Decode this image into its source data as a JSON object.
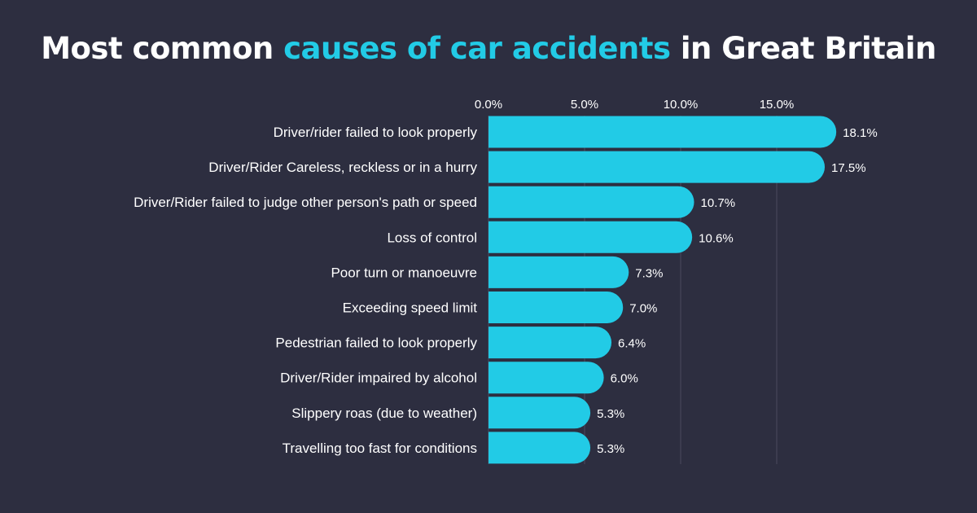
{
  "title": {
    "part1": "Most common ",
    "accent": "causes of car accidents",
    "part2": " in Great Britain"
  },
  "colors": {
    "background": "#2d2e40",
    "bar": "#22cbe6",
    "accent": "#22cbe6",
    "text": "#ffffff",
    "grid": "#4a4b5e"
  },
  "chart_data": {
    "type": "bar",
    "orientation": "horizontal",
    "title": "Most common causes of car accidents in Great Britain",
    "categories": [
      "Driver/rider failed to look properly",
      "Driver/Rider Careless, reckless or in a hurry",
      "Driver/Rider failed to judge other person's path or speed",
      "Loss of control",
      "Poor turn or manoeuvre",
      "Exceeding speed limit",
      "Pedestrian failed to look properly",
      "Driver/Rider impaired by alcohol",
      "Slippery roas (due to weather)",
      "Travelling too fast for conditions"
    ],
    "values": [
      18.1,
      17.5,
      10.7,
      10.6,
      7.3,
      7.0,
      6.4,
      6.0,
      5.3,
      5.3
    ],
    "value_labels": [
      "18.1%",
      "17.5%",
      "10.7%",
      "10.6%",
      "7.3%",
      "7.0%",
      "6.4%",
      "6.0%",
      "5.3%",
      "5.3%"
    ],
    "xticks": [
      0,
      5,
      10,
      15
    ],
    "xtick_labels": [
      "0.0%",
      "5.0%",
      "10.0%",
      "15.0%"
    ],
    "xlim": [
      0,
      18.1
    ],
    "axis_position": "top",
    "grid": true,
    "xlabel": "",
    "ylabel": ""
  }
}
